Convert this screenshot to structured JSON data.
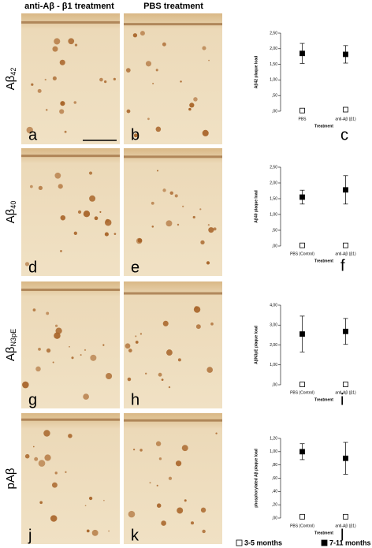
{
  "column_headers": [
    "anti-Aβ - β1 treatment",
    "PBS treatment"
  ],
  "row_labels": [
    {
      "text": "Aβ",
      "sub": "42"
    },
    {
      "text": "Aβ",
      "sub": "40"
    },
    {
      "text": "Aβ",
      "sub": "N3pE"
    },
    {
      "text": "pAβ"
    }
  ],
  "panels": [
    "a",
    "b",
    "c",
    "d",
    "e",
    "f",
    "g",
    "h",
    "i",
    "j",
    "k",
    "l"
  ],
  "chart_data": [
    {
      "type": "errorbar",
      "y_label": "Aβ42 plaque load",
      "x_label": "Treatment",
      "categories": [
        "PBS",
        "anti-Aβ (β1)"
      ],
      "ylim": [
        0,
        2.5
      ],
      "yticks": [
        {
          "value": 0,
          "label": ",00"
        },
        {
          "value": 0.5,
          "label": ",50"
        },
        {
          "value": 1,
          "label": "1,00"
        },
        {
          "value": 1.5,
          "label": "1,50"
        },
        {
          "value": 2,
          "label": "2,00"
        },
        {
          "value": 2.5,
          "label": "2,50"
        }
      ],
      "series": [
        {
          "name": "3-5 months",
          "color": "#ffffff",
          "values": [
            0.02,
            0.05
          ]
        },
        {
          "name": "7-11 months",
          "color": "#000000",
          "values": [
            1.85,
            1.82
          ],
          "errors": [
            0.32,
            0.28
          ]
        }
      ]
    },
    {
      "type": "errorbar",
      "y_label": "Aβ40 plaque load",
      "x_label": "Treatment",
      "categories": [
        "PBS (Control)",
        "anti-Aβ (β1)"
      ],
      "ylim": [
        0,
        2.5
      ],
      "yticks": [
        {
          "value": 0,
          "label": ",00"
        },
        {
          "value": 0.5,
          "label": ",50"
        },
        {
          "value": 1,
          "label": "1,00"
        },
        {
          "value": 1.5,
          "label": "1,50"
        },
        {
          "value": 2,
          "label": "2,00"
        },
        {
          "value": 2.5,
          "label": "2,50"
        }
      ],
      "series": [
        {
          "name": "3-5 months",
          "color": "#ffffff",
          "values": [
            0.02,
            0.02
          ]
        },
        {
          "name": "7-11 months",
          "color": "#000000",
          "values": [
            1.55,
            1.78
          ],
          "errors": [
            0.22,
            0.45
          ]
        }
      ]
    },
    {
      "type": "errorbar",
      "y_label": "AβN3pE plaque load",
      "x_label": "Treatment",
      "categories": [
        "PBS (Control)",
        "anti-Aβ (β1)"
      ],
      "ylim": [
        0,
        4
      ],
      "yticks": [
        {
          "value": 0,
          "label": ",00"
        },
        {
          "value": 1,
          "label": "1,00"
        },
        {
          "value": 2,
          "label": "2,00"
        },
        {
          "value": 3,
          "label": "3,00"
        },
        {
          "value": 4,
          "label": "4,00"
        }
      ],
      "series": [
        {
          "name": "3-5 months",
          "color": "#ffffff",
          "values": [
            0.02,
            0.02
          ]
        },
        {
          "name": "7-11 months",
          "color": "#000000",
          "values": [
            2.55,
            2.68
          ],
          "errors": [
            0.9,
            0.65
          ]
        }
      ]
    },
    {
      "type": "errorbar",
      "y_label": "phosphorylated Aβ plaque load",
      "x_label": "Treatment",
      "categories": [
        "PBS (Control)",
        "anti-Aβ (β1)"
      ],
      "ylim": [
        0,
        1.2
      ],
      "yticks": [
        {
          "value": 0,
          "label": ",00"
        },
        {
          "value": 0.2,
          "label": ",20"
        },
        {
          "value": 0.4,
          "label": ",40"
        },
        {
          "value": 0.6,
          "label": ",60"
        },
        {
          "value": 0.8,
          "label": ",80"
        },
        {
          "value": 1,
          "label": "1,00"
        },
        {
          "value": 1.2,
          "label": "1,20"
        }
      ],
      "series": [
        {
          "name": "3-5 months",
          "color": "#ffffff",
          "values": [
            0.02,
            0.02
          ]
        },
        {
          "name": "7-11 months",
          "color": "#000000",
          "values": [
            1.0,
            0.9
          ],
          "errors": [
            0.12,
            0.24
          ]
        }
      ]
    }
  ]
}
